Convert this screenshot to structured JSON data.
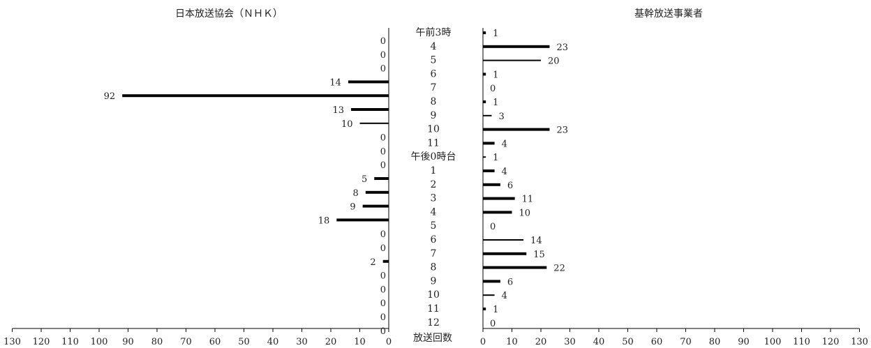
{
  "chart_data": [
    {
      "type": "bar",
      "orientation": "horizontal",
      "direction": "leftward",
      "title": "日本放送協会（ＮＨＫ）",
      "categories": [
        "午前3時",
        "4",
        "5",
        "6",
        "7",
        "8",
        "9",
        "10",
        "11",
        "午後0時台",
        "1",
        "2",
        "3",
        "4",
        "5",
        "6",
        "7",
        "8",
        "9",
        "10",
        "11",
        "12"
      ],
      "values": [
        0,
        0,
        0,
        14,
        92,
        13,
        10,
        0,
        0,
        0,
        5,
        8,
        9,
        18,
        0,
        0,
        2,
        0,
        0,
        0,
        0,
        0
      ],
      "xlim": [
        0,
        130
      ],
      "xticks": [
        0,
        10,
        20,
        30,
        40,
        50,
        60,
        70,
        80,
        90,
        100,
        110,
        120,
        130
      ],
      "grid": false
    },
    {
      "type": "bar",
      "orientation": "horizontal",
      "direction": "rightward",
      "title": "基幹放送事業者",
      "categories": [
        "午前3時",
        "4",
        "5",
        "6",
        "7",
        "8",
        "9",
        "10",
        "11",
        "午後0時台",
        "1",
        "2",
        "3",
        "4",
        "5",
        "6",
        "7",
        "8",
        "9",
        "10",
        "11",
        "12"
      ],
      "values": [
        1,
        23,
        20,
        1,
        0,
        1,
        3,
        23,
        4,
        1,
        4,
        6,
        11,
        10,
        0,
        14,
        15,
        22,
        6,
        4,
        1,
        0
      ],
      "xlim": [
        0,
        130
      ],
      "xticks": [
        0,
        10,
        20,
        30,
        40,
        50,
        60,
        70,
        80,
        90,
        100,
        110,
        120,
        130
      ],
      "grid": false
    }
  ],
  "center_axis_label": "放送回数",
  "bar_thickness": [
    4,
    4,
    2,
    4,
    4,
    4,
    2,
    4,
    4,
    2,
    4,
    4,
    4,
    4,
    2,
    2,
    4,
    4,
    4,
    2,
    4,
    2
  ],
  "bar_color": "#000000",
  "text_color": "#222222"
}
